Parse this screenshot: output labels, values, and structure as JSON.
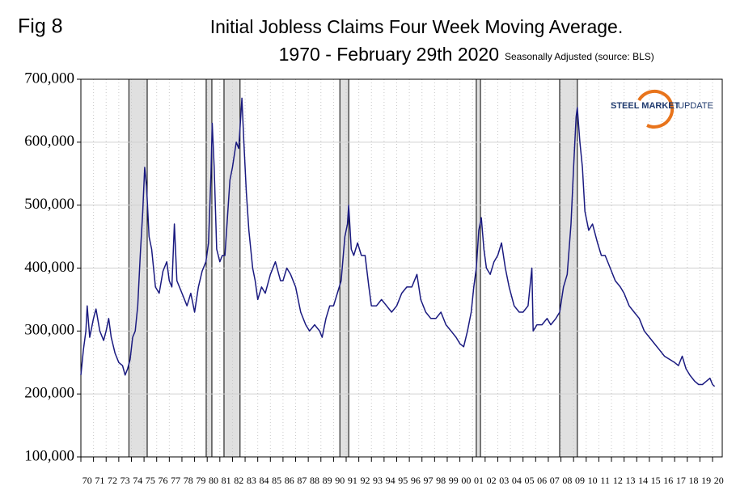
{
  "chart_data": {
    "type": "line",
    "figure_label": "Fig 8",
    "title": "Initial Jobless Claims Four Week Moving Average.",
    "subtitle": "1970 - February 29th 2020",
    "note": "Seasonally Adjusted  (source: BLS)",
    "logo": {
      "bold": "STEEL MARKET",
      "light": "UPDATE"
    },
    "color": "#1a1a80",
    "recession_color": "#e0e0e0",
    "grid": true,
    "x": [
      1970,
      1970.2,
      1970.4,
      1970.5,
      1970.7,
      1971,
      1971.2,
      1971.5,
      1971.8,
      1972,
      1972.2,
      1972.4,
      1972.7,
      1973,
      1973.3,
      1973.5,
      1973.7,
      1973.9,
      1974.1,
      1974.3,
      1974.5,
      1974.7,
      1974.9,
      1975.05,
      1975.2,
      1975.4,
      1975.6,
      1975.9,
      1976.2,
      1976.5,
      1976.8,
      1977,
      1977.2,
      1977.4,
      1977.6,
      1978,
      1978.4,
      1978.7,
      1979,
      1979.3,
      1979.6,
      1979.9,
      1980.1,
      1980.3,
      1980.4,
      1980.55,
      1980.75,
      1981,
      1981.2,
      1981.4,
      1981.6,
      1981.8,
      1982,
      1982.3,
      1982.5,
      1982.75,
      1982.9,
      1983.1,
      1983.3,
      1983.6,
      1983.8,
      1984,
      1984.3,
      1984.6,
      1985,
      1985.4,
      1985.8,
      1986,
      1986.3,
      1986.6,
      1987,
      1987.4,
      1987.8,
      1988.1,
      1988.5,
      1988.9,
      1989.1,
      1989.4,
      1989.7,
      1990,
      1990.3,
      1990.6,
      1990.9,
      1991.1,
      1991.2,
      1991.4,
      1991.6,
      1991.9,
      1992.2,
      1992.5,
      1992.8,
      1993,
      1993.4,
      1993.8,
      1994.2,
      1994.6,
      1995,
      1995.4,
      1995.8,
      1996.2,
      1996.6,
      1996.9,
      1997.3,
      1997.7,
      1998.1,
      1998.5,
      1998.9,
      1999.3,
      1999.7,
      2000,
      2000.3,
      2000.6,
      2000.9,
      2001.1,
      2001.3,
      2001.5,
      2001.7,
      2001.9,
      2002.1,
      2002.4,
      2002.7,
      2003,
      2003.3,
      2003.6,
      2003.9,
      2004.3,
      2004.7,
      2005,
      2005.4,
      2005.7,
      2005.8,
      2006.1,
      2006.5,
      2006.9,
      2007.2,
      2007.6,
      2007.9,
      2008.2,
      2008.5,
      2008.8,
      2009,
      2009.2,
      2009.3,
      2009.5,
      2009.7,
      2009.9,
      2010.2,
      2010.5,
      2010.9,
      2011.2,
      2011.5,
      2011.9,
      2012.3,
      2012.7,
      2013,
      2013.4,
      2013.8,
      2014.2,
      2014.6,
      2015,
      2015.4,
      2015.8,
      2016.2,
      2016.6,
      2017,
      2017.3,
      2017.6,
      2017.9,
      2018.2,
      2018.6,
      2018.9,
      2019.2,
      2019.5,
      2019.8,
      2020,
      2020.17
    ],
    "values": [
      230000,
      270000,
      300000,
      340000,
      290000,
      320000,
      335000,
      300000,
      285000,
      300000,
      320000,
      290000,
      265000,
      250000,
      245000,
      230000,
      240000,
      255000,
      290000,
      300000,
      340000,
      420000,
      490000,
      560000,
      530000,
      450000,
      430000,
      370000,
      360000,
      395000,
      410000,
      380000,
      370000,
      470000,
      380000,
      360000,
      340000,
      360000,
      330000,
      370000,
      395000,
      410000,
      440000,
      550000,
      630000,
      560000,
      430000,
      410000,
      420000,
      420000,
      480000,
      540000,
      560000,
      600000,
      590000,
      670000,
      600000,
      520000,
      460000,
      400000,
      380000,
      350000,
      370000,
      360000,
      390000,
      410000,
      380000,
      380000,
      400000,
      390000,
      370000,
      330000,
      310000,
      300000,
      310000,
      300000,
      290000,
      320000,
      340000,
      340000,
      360000,
      380000,
      450000,
      470000,
      500000,
      430000,
      420000,
      440000,
      420000,
      420000,
      370000,
      340000,
      340000,
      350000,
      340000,
      330000,
      340000,
      360000,
      370000,
      370000,
      390000,
      350000,
      330000,
      320000,
      320000,
      330000,
      310000,
      300000,
      290000,
      280000,
      275000,
      300000,
      330000,
      370000,
      400000,
      460000,
      480000,
      430000,
      400000,
      390000,
      410000,
      420000,
      440000,
      400000,
      370000,
      340000,
      330000,
      330000,
      340000,
      400000,
      300000,
      310000,
      310000,
      320000,
      310000,
      320000,
      330000,
      370000,
      390000,
      470000,
      560000,
      640000,
      655000,
      600000,
      560000,
      490000,
      460000,
      470000,
      440000,
      420000,
      420000,
      400000,
      380000,
      370000,
      360000,
      340000,
      330000,
      320000,
      300000,
      290000,
      280000,
      270000,
      260000,
      255000,
      250000,
      245000,
      260000,
      240000,
      230000,
      220000,
      215000,
      215000,
      220000,
      225000,
      215000,
      212000
    ],
    "recessions": [
      [
        1973.8,
        1975.25
      ],
      [
        1979.92,
        1980.37
      ],
      [
        1981.33,
        1982.6
      ],
      [
        1990.5,
        1991.2
      ],
      [
        2001.3,
        2001.63
      ],
      [
        2007.9,
        2009.3
      ]
    ],
    "xlim": [
      1970,
      2020.77
    ],
    "ylim": [
      100000,
      700000
    ],
    "yticks": [
      {
        "value": 100000,
        "label": "100,000"
      },
      {
        "value": 200000,
        "label": "200,000"
      },
      {
        "value": 300000,
        "label": "300,000"
      },
      {
        "value": 400000,
        "label": "400,000"
      },
      {
        "value": 500000,
        "label": "500,000"
      },
      {
        "value": 600000,
        "label": "600,000"
      },
      {
        "value": 700000,
        "label": "700,000"
      }
    ],
    "xticks": [
      {
        "value": 1970,
        "label": "70"
      },
      {
        "value": 1971,
        "label": "71"
      },
      {
        "value": 1972,
        "label": "72"
      },
      {
        "value": 1973,
        "label": "73"
      },
      {
        "value": 1974,
        "label": "74"
      },
      {
        "value": 1975,
        "label": "75"
      },
      {
        "value": 1976,
        "label": "76"
      },
      {
        "value": 1977,
        "label": "77"
      },
      {
        "value": 1978,
        "label": "78"
      },
      {
        "value": 1979,
        "label": "79"
      },
      {
        "value": 1980,
        "label": "80"
      },
      {
        "value": 1981,
        "label": "81"
      },
      {
        "value": 1982,
        "label": "82"
      },
      {
        "value": 1983,
        "label": "83"
      },
      {
        "value": 1984,
        "label": "84"
      },
      {
        "value": 1985,
        "label": "85"
      },
      {
        "value": 1986,
        "label": "86"
      },
      {
        "value": 1987,
        "label": "87"
      },
      {
        "value": 1988,
        "label": "88"
      },
      {
        "value": 1989,
        "label": "89"
      },
      {
        "value": 1990,
        "label": "90"
      },
      {
        "value": 1991,
        "label": "91"
      },
      {
        "value": 1992,
        "label": "92"
      },
      {
        "value": 1993,
        "label": "93"
      },
      {
        "value": 1994,
        "label": "94"
      },
      {
        "value": 1995,
        "label": "95"
      },
      {
        "value": 1996,
        "label": "96"
      },
      {
        "value": 1997,
        "label": "97"
      },
      {
        "value": 1998,
        "label": "98"
      },
      {
        "value": 1999,
        "label": "99"
      },
      {
        "value": 2000,
        "label": "00"
      },
      {
        "value": 2001,
        "label": "01"
      },
      {
        "value": 2002,
        "label": "02"
      },
      {
        "value": 2003,
        "label": "03"
      },
      {
        "value": 2004,
        "label": "04"
      },
      {
        "value": 2005,
        "label": "05"
      },
      {
        "value": 2006,
        "label": "06"
      },
      {
        "value": 2007,
        "label": "07"
      },
      {
        "value": 2008,
        "label": "08"
      },
      {
        "value": 2009,
        "label": "09"
      },
      {
        "value": 2010,
        "label": "10"
      },
      {
        "value": 2011,
        "label": "11"
      },
      {
        "value": 2012,
        "label": "12"
      },
      {
        "value": 2013,
        "label": "13"
      },
      {
        "value": 2014,
        "label": "14"
      },
      {
        "value": 2015,
        "label": "15"
      },
      {
        "value": 2016,
        "label": "16"
      },
      {
        "value": 2017,
        "label": "17"
      },
      {
        "value": 2018,
        "label": "18"
      },
      {
        "value": 2019,
        "label": "19"
      },
      {
        "value": 2020,
        "label": "20"
      }
    ]
  }
}
